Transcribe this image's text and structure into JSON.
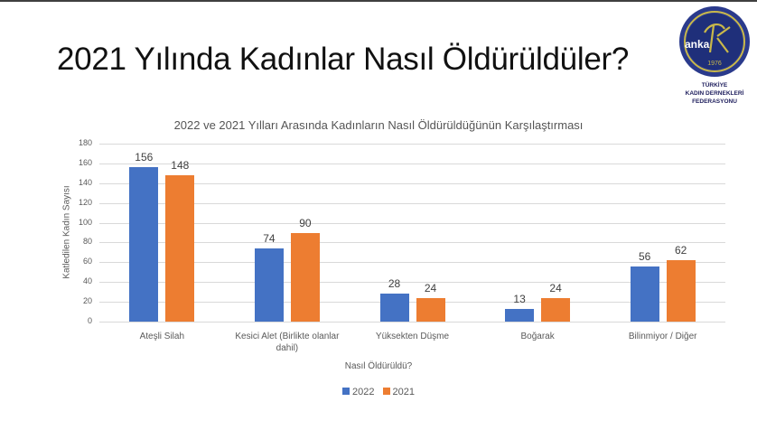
{
  "slide": {
    "title": "2021 Yılında Kadınlar Nasıl Öldürüldüler?"
  },
  "logo": {
    "badge_text": "anka",
    "year": "1976",
    "line1": "TÜRKİYE",
    "line2": "KADIN DERNEKLERİ",
    "line3": "FEDERASYONU"
  },
  "colors": {
    "series_2022": "#4472c4",
    "series_2021": "#ed7d31"
  },
  "chart_data": {
    "type": "bar",
    "title": "2022 ve 2021 Yılları Arasında Kadınların Nasıl Öldürüldüğünün Karşılaştırması",
    "xlabel": "Nasıl Öldürüldü?",
    "ylabel": "Katledilen Kadın Sayısı",
    "ylim": [
      0,
      180
    ],
    "yticks": [
      0,
      20,
      40,
      60,
      80,
      100,
      120,
      140,
      160,
      180
    ],
    "grid": true,
    "legend_position": "bottom",
    "categories": [
      "Ateşli Silah",
      "Kesici Alet (Birlikte olanlar dahil)",
      "Yüksekten Düşme",
      "Boğarak",
      "Bilinmiyor / Diğer"
    ],
    "series": [
      {
        "name": "2022",
        "color": "#4472c4",
        "values": [
          156,
          74,
          28,
          13,
          56
        ]
      },
      {
        "name": "2021",
        "color": "#ed7d31",
        "values": [
          148,
          90,
          24,
          24,
          62
        ]
      }
    ]
  }
}
